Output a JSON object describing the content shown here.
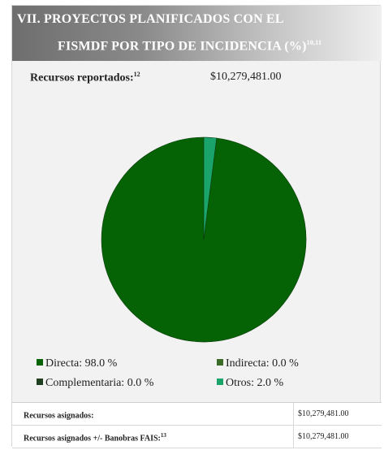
{
  "header": {
    "line1": "VII. PROYECTOS PLANIFICADOS CON EL",
    "line2": "FISMDF POR TIPO DE INCIDENCIA (%)",
    "line2_sup": "10,11"
  },
  "resources": {
    "label": "Recursos reportados:",
    "label_sup": "12",
    "value": "$10,279,481.00"
  },
  "chart_data": {
    "type": "pie",
    "categories": [
      "Directa",
      "Indirecta",
      "Complementaria",
      "Otros"
    ],
    "values": [
      98.0,
      0.0,
      0.0,
      2.0
    ],
    "colors": [
      "#056205",
      "#3b6b24",
      "#1f3f1f",
      "#1aa36a"
    ],
    "legend_texts": [
      "Directa: 98.0 %",
      "Indirecta: 0.0 %",
      "Complementaria: 0.0 %",
      "Otros: 2.0 %"
    ],
    "legend_position": "bottom",
    "title": ""
  },
  "table": {
    "rows": [
      {
        "label": "Recursos asignados:",
        "sup": "",
        "value": "$10,279,481.00"
      },
      {
        "label": "Recursos asignados +/- Banobras FAIS:",
        "sup": "13",
        "value": "$10,279,481.00"
      }
    ]
  }
}
